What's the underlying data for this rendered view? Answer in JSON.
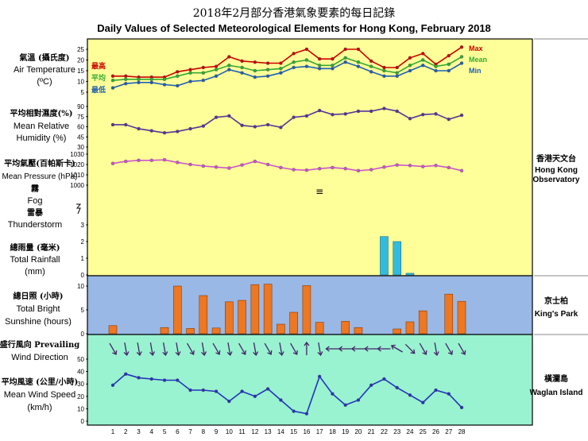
{
  "title_zh": "2018年2月部分香港氣象要素的每日記錄",
  "title_en": "Daily Values of Selected Meteorological Elements for Hong Kong, February 2018",
  "colors": {
    "panel_top": "#ffff99",
    "panel_sun": "#99b8e6",
    "panel_wind": "#99f2d0",
    "max": "#cc0000",
    "mean": "#33aa33",
    "min": "#1f5fb4",
    "humidity": "#553399",
    "pressure": "#cc55cc",
    "rain": "#33bbdd",
    "sunshine": "#ee7722",
    "wind_speed": "#2233bb",
    "wind_dir": "#442266"
  },
  "legend": {
    "max_zh": "最高",
    "mean_zh": "平均",
    "min_zh": "最低",
    "max_en": "Max",
    "mean_en": "Mean",
    "min_en": "Min"
  },
  "labels": {
    "temp_zh": "氣溫 (攝氏度)",
    "temp_en1": "Air Temperature",
    "temp_en2": "(ºC)",
    "hum_zh": "平均相對濕度(%)",
    "hum_en1": "Mean Relative",
    "hum_en2": "Humidity  (%)",
    "pres_zh": "平均氣壓(百帕斯卡)",
    "pres_en": "Mean Pressure (hPa)",
    "fog_zh": "霧",
    "fog_en": "Fog",
    "thunder_zh": "雷暴",
    "thunder_en": "Thunderstorm",
    "rain_zh": "總雨量 (毫米)",
    "rain_en1": "Total Rainfall",
    "rain_en2": "(mm)",
    "sun_zh": "總日照 (小時)",
    "sun_en1": "Total Bright",
    "sun_en2": "Sunshine  (hours)",
    "wdir_zh": "盛行風向 Prevailing",
    "wdir_en": "Wind Direction",
    "wspd_zh": "平均風速 (公里/小時)",
    "wspd_en1": "Mean Wind Speed",
    "wspd_en2": "(km/h)"
  },
  "stations": {
    "hko_zh": "香港天文台",
    "hko_en1": "Hong Kong",
    "hko_en2": "Observatory",
    "kp_zh": "京士柏",
    "kp_en": "King's Park",
    "wi_zh": "橫瀾島",
    "wi_en": "Waglan Island"
  },
  "fog_symbol": "≡",
  "chart_data": {
    "type": "line",
    "x_label": "",
    "days": [
      1,
      2,
      3,
      4,
      5,
      6,
      7,
      8,
      9,
      10,
      11,
      12,
      13,
      14,
      15,
      16,
      17,
      18,
      19,
      20,
      21,
      22,
      23,
      24,
      25,
      26,
      27,
      28
    ],
    "temperature": {
      "ylim": [
        5,
        25
      ],
      "yticks": [
        5,
        10,
        15,
        20,
        25
      ],
      "series": [
        {
          "name": "Max",
          "values": [
            12.5,
            12.5,
            12,
            12,
            12,
            14.5,
            15.5,
            16.5,
            17,
            21.5,
            19.5,
            19,
            18.5,
            18.5,
            23,
            25,
            20.5,
            20.5,
            25,
            25,
            19.5,
            16.5,
            16.5,
            21,
            23,
            18,
            22,
            26
          ]
        },
        {
          "name": "Mean",
          "values": [
            10.5,
            11,
            11,
            11,
            11,
            12.5,
            14,
            14,
            15.5,
            17.5,
            16.5,
            15,
            15.5,
            16,
            19,
            20,
            17.5,
            17.5,
            21,
            19,
            17,
            15,
            14,
            17.5,
            20,
            17,
            18,
            21.5
          ]
        },
        {
          "name": "Min",
          "values": [
            7,
            9,
            9.5,
            9.5,
            8.5,
            8,
            10,
            10.5,
            12.5,
            15.5,
            14,
            12,
            12.5,
            14,
            16.5,
            17,
            16,
            16,
            19,
            17,
            14.5,
            12.5,
            12.5,
            15,
            17.5,
            15,
            15,
            18.5
          ]
        }
      ]
    },
    "humidity": {
      "yticks": [
        30,
        45,
        60,
        75,
        90
      ],
      "ylim": [
        30,
        90
      ],
      "values": [
        63,
        63,
        57,
        54,
        51,
        53,
        57,
        61,
        74,
        76,
        62,
        60,
        63,
        59,
        74,
        76,
        84,
        78,
        79,
        83,
        83,
        87,
        83,
        72,
        78,
        79,
        71,
        77
      ]
    },
    "pressure": {
      "yticks": [
        1000,
        1010,
        1020,
        1030
      ],
      "ylim": [
        1000,
        1030
      ],
      "values": [
        1021,
        1023,
        1024,
        1024,
        1024.5,
        1022,
        1020,
        1018.5,
        1017.5,
        1016.5,
        1019.5,
        1023,
        1020,
        1017,
        1015,
        1014.5,
        1016,
        1017,
        1016,
        1014,
        1015,
        1017.5,
        1019.5,
        1019,
        1018,
        1019,
        1017,
        1014
      ]
    },
    "fog_days": [
      17
    ],
    "thunderstorm_days": [],
    "rainfall": {
      "yticks": [
        0,
        1,
        2,
        3
      ],
      "ylim": [
        0,
        3
      ],
      "values": [
        0,
        0,
        0,
        0,
        0,
        0,
        0,
        0,
        0,
        0,
        0,
        0,
        0,
        0,
        0,
        0,
        0,
        0,
        0,
        0,
        0,
        2.3,
        2,
        0.1,
        0,
        0,
        0,
        0
      ]
    },
    "sunshine": {
      "yticks": [
        0,
        5,
        10
      ],
      "ylim": [
        0,
        10
      ],
      "values": [
        1.7,
        0,
        0,
        0,
        1.3,
        10,
        1.1,
        8,
        1.2,
        6.7,
        7,
        10.3,
        10.4,
        2,
        4.5,
        10.1,
        2.4,
        0,
        2.6,
        1.3,
        0,
        0,
        1,
        2.5,
        4.8,
        0,
        8.3,
        6.8
      ]
    },
    "wind_direction_deg": [
      330,
      350,
      350,
      350,
      350,
      350,
      330,
      350,
      330,
      350,
      330,
      350,
      330,
      350,
      330,
      180,
      350,
      90,
      90,
      90,
      90,
      90,
      120,
      315,
      330,
      350,
      330,
      330
    ],
    "wind_speed": {
      "yticks": [
        0,
        10,
        20,
        30,
        40,
        50
      ],
      "ylim": [
        0,
        50
      ],
      "values": [
        29,
        38,
        35,
        34,
        33,
        33,
        25,
        25,
        24,
        16,
        24,
        20,
        26,
        17,
        8,
        6,
        36,
        22,
        13,
        17,
        29,
        34,
        27,
        21,
        15,
        25,
        22,
        11
      ]
    }
  }
}
